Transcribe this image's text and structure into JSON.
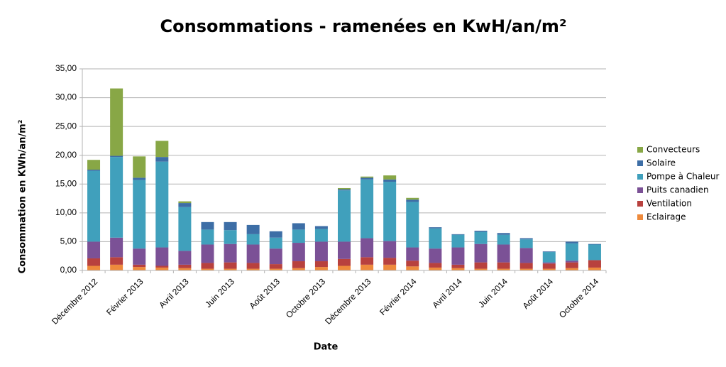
{
  "chart_data": {
    "type": "stacked_bar",
    "title": "Consommations - ramenées en KwH/an/m²",
    "x_label": "Date",
    "y_label": "Consommation en KWh/an/m²",
    "categories": [
      "Décembre 2012",
      null,
      "Février 2013",
      null,
      "Avril 2013",
      null,
      "Juin 2013",
      null,
      "Août 2013",
      null,
      "Octobre 2013",
      null,
      "Décembre 2013",
      null,
      "Février 2014",
      null,
      "Avril 2014",
      null,
      "Juin 2014",
      null,
      "Août 2014",
      null,
      "Octobre 2014"
    ],
    "series": [
      {
        "name": "Eclairage",
        "color": "#ee8a3c",
        "values": [
          0.8,
          1.0,
          0.6,
          0.5,
          0.4,
          0.3,
          0.3,
          0.3,
          0.3,
          0.4,
          0.6,
          0.8,
          1.0,
          1.0,
          0.7,
          0.5,
          0.4,
          0.3,
          0.3,
          0.3,
          0.3,
          0.4,
          0.5
        ]
      },
      {
        "name": "Ventilation",
        "color": "#b8413e",
        "values": [
          1.3,
          1.3,
          0.4,
          0.3,
          0.6,
          1.0,
          1.1,
          1.0,
          0.8,
          1.2,
          1.0,
          1.2,
          1.3,
          1.2,
          1.0,
          0.8,
          0.6,
          1.1,
          1.1,
          1.0,
          0.9,
          1.0,
          1.3
        ]
      },
      {
        "name": "Puits canadien",
        "color": "#7b5196",
        "values": [
          2.9,
          3.4,
          2.8,
          3.2,
          2.4,
          3.2,
          3.2,
          3.2,
          2.7,
          3.2,
          3.4,
          3.0,
          3.3,
          2.9,
          2.3,
          2.5,
          3.0,
          3.2,
          3.1,
          2.6,
          0.2,
          0.3,
          0
        ]
      },
      {
        "name": "Pompe à Chaleur",
        "color": "#40a0bc",
        "values": [
          12.3,
          14.0,
          11.9,
          14.9,
          7.6,
          2.6,
          2.4,
          1.8,
          1.9,
          2.3,
          2.2,
          8.9,
          10.2,
          10.3,
          7.9,
          3.5,
          2.2,
          2.1,
          1.7,
          1.5,
          1.8,
          3.0,
          2.7
        ]
      },
      {
        "name": "Solaire",
        "color": "#3d6ea6",
        "values": [
          0.2,
          0.2,
          0.4,
          0.8,
          0.7,
          1.3,
          1.4,
          1.6,
          1.1,
          1.1,
          0.5,
          0.2,
          0.3,
          0.4,
          0.4,
          0.2,
          0.1,
          0.2,
          0.3,
          0.2,
          0.1,
          0.3,
          0.1
        ]
      },
      {
        "name": "Convecteurs",
        "color": "#88a746",
        "values": [
          1.7,
          11.7,
          3.7,
          2.8,
          0.3,
          0,
          0,
          0,
          0,
          0,
          0,
          0.2,
          0.2,
          0.7,
          0.3,
          0,
          0,
          0,
          0,
          0,
          0,
          0,
          0
        ]
      }
    ],
    "ylim": [
      0,
      35
    ],
    "yticks": [
      {
        "value": 0,
        "label": "0,00"
      },
      {
        "value": 5,
        "label": "5,00"
      },
      {
        "value": 10,
        "label": "10,00"
      },
      {
        "value": 15,
        "label": "15,00"
      },
      {
        "value": 20,
        "label": "20,00"
      },
      {
        "value": 25,
        "label": "25,00"
      },
      {
        "value": 30,
        "label": "30,00"
      },
      {
        "value": 35,
        "label": "35,00"
      }
    ],
    "grid": true,
    "legend": "right"
  }
}
